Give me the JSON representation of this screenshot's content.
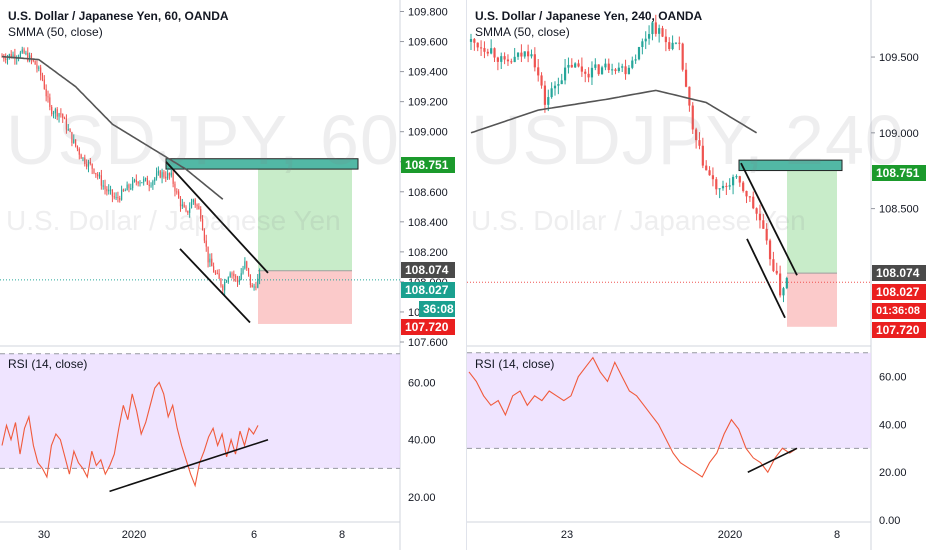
{
  "left": {
    "title": "U.S. Dollar / Japanese Yen, 60, OANDA",
    "indicator": "SMMA (50, close)",
    "watermark_symbol": "USDJPY, 60",
    "watermark_name": "U.S. Dollar / Japanese Yen",
    "rsi_label": "RSI (14, close)",
    "price_ticks": [
      "109.800",
      "109.600",
      "109.400",
      "109.200",
      "109.000",
      "108.800",
      "108.600",
      "108.400",
      "108.200",
      "108.000",
      "107.800",
      "107.600"
    ],
    "rsi_ticks": [
      "60.00",
      "40.00",
      "20.00"
    ],
    "time_ticks": [
      "30",
      "2020",
      "6",
      "8"
    ],
    "tags": {
      "target": "108.751",
      "last": "108.074",
      "current": "108.027",
      "countdown": "36:08",
      "stop": "107.720"
    }
  },
  "right": {
    "title": "U.S. Dollar / Japanese Yen, 240, OANDA",
    "indicator": "SMMA (50, close)",
    "watermark_symbol": "USDJPY, 240",
    "watermark_name": "U.S. Dollar / Japanese Yen",
    "rsi_label": "RSI (14, close)",
    "price_ticks": [
      "109.500",
      "109.000",
      "108.500"
    ],
    "rsi_ticks": [
      "60.00",
      "40.00",
      "20.00",
      "0.00"
    ],
    "time_ticks": [
      "23",
      "2020",
      "8"
    ],
    "tags": {
      "target": "108.751",
      "last": "108.074",
      "current": "108.027",
      "countdown": "01:36:08",
      "stop": "107.720"
    }
  },
  "colors": {
    "up": "#26a69a",
    "down": "#ef5350",
    "smma": "#555555",
    "rsi_line": "#f05a3c",
    "rsi_band": "#e9dbff",
    "target_zone": "#c8ecc9",
    "stop_zone": "#fbcaca",
    "resistance": "#52b8a5",
    "tag_green": "#1b9a2c",
    "tag_dark": "#4a4a4a",
    "tag_red": "#ea1f1f",
    "tag_teal": "#1aa08f"
  },
  "chart_data": [
    {
      "type": "candlestick",
      "title": "U.S. Dollar / Japanese Yen, 60, OANDA",
      "x_ticks": [
        "30",
        "2020",
        "6",
        "8"
      ],
      "y_ticks": [
        109.8,
        109.6,
        109.4,
        109.2,
        109.0,
        108.8,
        108.6,
        108.4,
        108.2,
        108.0,
        107.8,
        107.6
      ],
      "ylim": [
        107.58,
        109.85
      ],
      "close_path": [
        {
          "i": 0,
          "v": 109.5
        },
        {
          "i": 12,
          "v": 109.52
        },
        {
          "i": 18,
          "v": 109.45
        },
        {
          "i": 22,
          "v": 109.35
        },
        {
          "i": 26,
          "v": 109.15
        },
        {
          "i": 32,
          "v": 109.12
        },
        {
          "i": 38,
          "v": 108.95
        },
        {
          "i": 44,
          "v": 108.82
        },
        {
          "i": 50,
          "v": 108.75
        },
        {
          "i": 56,
          "v": 108.62
        },
        {
          "i": 62,
          "v": 108.55
        },
        {
          "i": 68,
          "v": 108.62
        },
        {
          "i": 74,
          "v": 108.68
        },
        {
          "i": 80,
          "v": 108.66
        },
        {
          "i": 86,
          "v": 108.72
        },
        {
          "i": 92,
          "v": 108.7
        },
        {
          "i": 96,
          "v": 108.55
        },
        {
          "i": 100,
          "v": 108.45
        },
        {
          "i": 104,
          "v": 108.55
        },
        {
          "i": 108,
          "v": 108.45
        },
        {
          "i": 112,
          "v": 108.15
        },
        {
          "i": 116,
          "v": 108.05
        },
        {
          "i": 120,
          "v": 107.97
        },
        {
          "i": 124,
          "v": 108.08
        },
        {
          "i": 128,
          "v": 108.0
        },
        {
          "i": 132,
          "v": 108.12
        },
        {
          "i": 136,
          "v": 107.95
        },
        {
          "i": 140,
          "v": 108.03
        }
      ],
      "smma": [
        {
          "i": 0,
          "v": 109.5
        },
        {
          "i": 20,
          "v": 109.48
        },
        {
          "i": 40,
          "v": 109.3
        },
        {
          "i": 60,
          "v": 109.05
        },
        {
          "i": 80,
          "v": 108.9
        },
        {
          "i": 100,
          "v": 108.75
        },
        {
          "i": 120,
          "v": 108.55
        }
      ],
      "resistance_zone": [
        108.751,
        108.82
      ],
      "target": 108.751,
      "entry": 108.074,
      "stop": 107.72,
      "last_price": 108.074,
      "current_price": 108.027,
      "rsi": {
        "ylim": [
          12,
          72
        ],
        "band": [
          30,
          70
        ],
        "y_ticks": [
          60,
          40,
          20
        ],
        "values": [
          38,
          45,
          40,
          46,
          35,
          44,
          48,
          38,
          32,
          30,
          27,
          38,
          42,
          40,
          34,
          28,
          36,
          32,
          30,
          27,
          36,
          31,
          33,
          28,
          31,
          35,
          44,
          52,
          47,
          56,
          50,
          42,
          46,
          52,
          58,
          60,
          56,
          48,
          52,
          44,
          38,
          33,
          28,
          24,
          32,
          36,
          41,
          44,
          38,
          42,
          34,
          40,
          35,
          43,
          38,
          44,
          42,
          45
        ],
        "trendline": [
          [
            0.42,
            22
          ],
          [
            1.0,
            40
          ]
        ]
      }
    },
    {
      "type": "candlestick",
      "title": "U.S. Dollar / Japanese Yen, 240, OANDA",
      "x_ticks": [
        "23",
        "2020",
        "8"
      ],
      "y_ticks": [
        109.5,
        109.0,
        108.5
      ],
      "ylim": [
        107.6,
        109.85
      ],
      "close_path": [
        {
          "i": 0,
          "v": 109.6
        },
        {
          "i": 6,
          "v": 109.55
        },
        {
          "i": 10,
          "v": 109.45
        },
        {
          "i": 14,
          "v": 109.5
        },
        {
          "i": 18,
          "v": 109.55
        },
        {
          "i": 22,
          "v": 109.2
        },
        {
          "i": 26,
          "v": 109.35
        },
        {
          "i": 30,
          "v": 109.45
        },
        {
          "i": 34,
          "v": 109.4
        },
        {
          "i": 38,
          "v": 109.42
        },
        {
          "i": 42,
          "v": 109.45
        },
        {
          "i": 46,
          "v": 109.42
        },
        {
          "i": 50,
          "v": 109.55
        },
        {
          "i": 54,
          "v": 109.72
        },
        {
          "i": 58,
          "v": 109.6
        },
        {
          "i": 62,
          "v": 109.55
        },
        {
          "i": 64,
          "v": 109.3
        },
        {
          "i": 66,
          "v": 109.0
        },
        {
          "i": 70,
          "v": 108.75
        },
        {
          "i": 74,
          "v": 108.6
        },
        {
          "i": 78,
          "v": 108.7
        },
        {
          "i": 82,
          "v": 108.6
        },
        {
          "i": 86,
          "v": 108.42
        },
        {
          "i": 88,
          "v": 108.25
        },
        {
          "i": 90,
          "v": 108.12
        },
        {
          "i": 92,
          "v": 107.95
        },
        {
          "i": 94,
          "v": 108.03
        }
      ],
      "smma": [
        {
          "i": 0,
          "v": 109.0
        },
        {
          "i": 20,
          "v": 109.15
        },
        {
          "i": 40,
          "v": 109.22
        },
        {
          "i": 55,
          "v": 109.28
        },
        {
          "i": 70,
          "v": 109.2
        },
        {
          "i": 85,
          "v": 109.0
        }
      ],
      "resistance_zone": [
        108.751,
        108.82
      ],
      "target": 108.751,
      "entry": 108.074,
      "stop": 107.72,
      "last_price": 108.074,
      "current_price": 108.027,
      "rsi": {
        "ylim": [
          0,
          72
        ],
        "band": [
          30,
          70
        ],
        "y_ticks": [
          60,
          40,
          20,
          0
        ],
        "values": [
          62,
          58,
          52,
          48,
          50,
          44,
          52,
          54,
          48,
          52,
          50,
          54,
          52,
          50,
          52,
          60,
          64,
          68,
          62,
          58,
          66,
          60,
          54,
          52,
          48,
          44,
          40,
          34,
          28,
          24,
          22,
          20,
          18,
          24,
          28,
          36,
          42,
          38,
          30,
          26,
          24,
          20,
          26,
          30,
          28,
          30
        ],
        "trendline": [
          [
            0.85,
            20
          ],
          [
            1.0,
            30
          ]
        ]
      }
    }
  ]
}
